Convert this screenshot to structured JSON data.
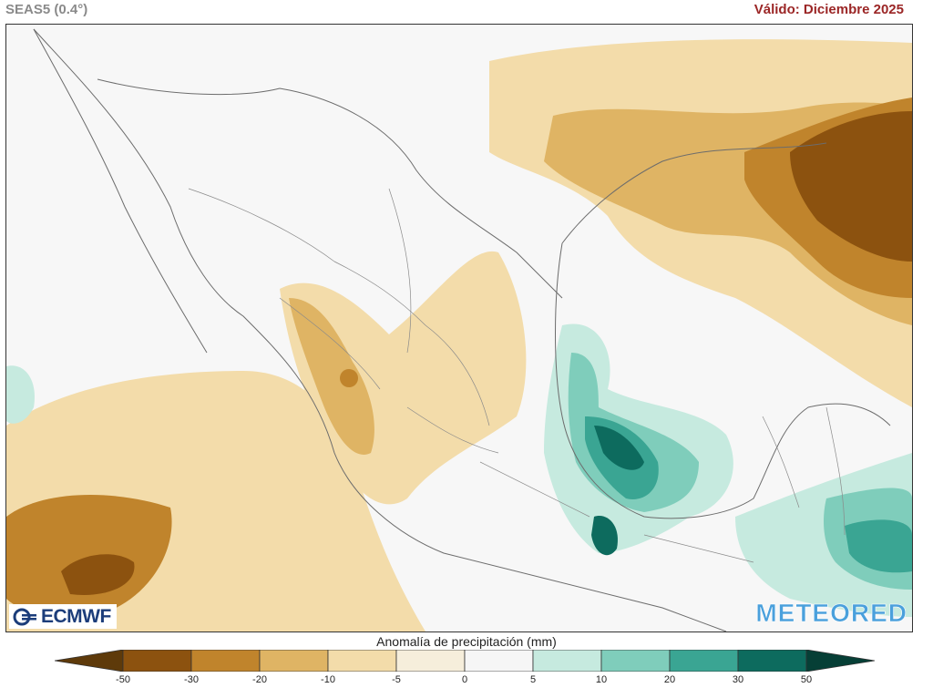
{
  "header": {
    "model": "SEAS5 (0.4°)",
    "valid": "Válido: Diciembre 2025"
  },
  "map": {
    "colors": {
      "ocean": "#f7f7f7",
      "land": "#e9e9e9",
      "border": "#6c6c6c",
      "neg50": "#5e3a0a",
      "neg30": "#8c520f",
      "neg20": "#c0842c",
      "neg10": "#dfb464",
      "neg5": "#f3dcaa",
      "zero": "#f6eedb",
      "pos5": "#c6eadf",
      "pos10": "#7fcdbb",
      "pos20": "#3aa593",
      "pos30": "#0d6b5e",
      "pos50": "#063f36"
    }
  },
  "logos": {
    "left": "ECMWF",
    "right": "METEORED",
    "left_icon": "ecmwf-logo-icon"
  },
  "legend": {
    "title": "Anomalía de precipitación (mm)",
    "ticks": [
      "-50",
      "-30",
      "-20",
      "-10",
      "-5",
      "0",
      "5",
      "10",
      "20",
      "30",
      "50"
    ],
    "colors": [
      "#5e3a0a",
      "#8c520f",
      "#c0842c",
      "#dfb464",
      "#f3dcaa",
      "#f6eedb",
      "#f6f6f6",
      "#c6eadf",
      "#7fcdbb",
      "#3aa593",
      "#0d6b5e",
      "#063f36"
    ]
  }
}
